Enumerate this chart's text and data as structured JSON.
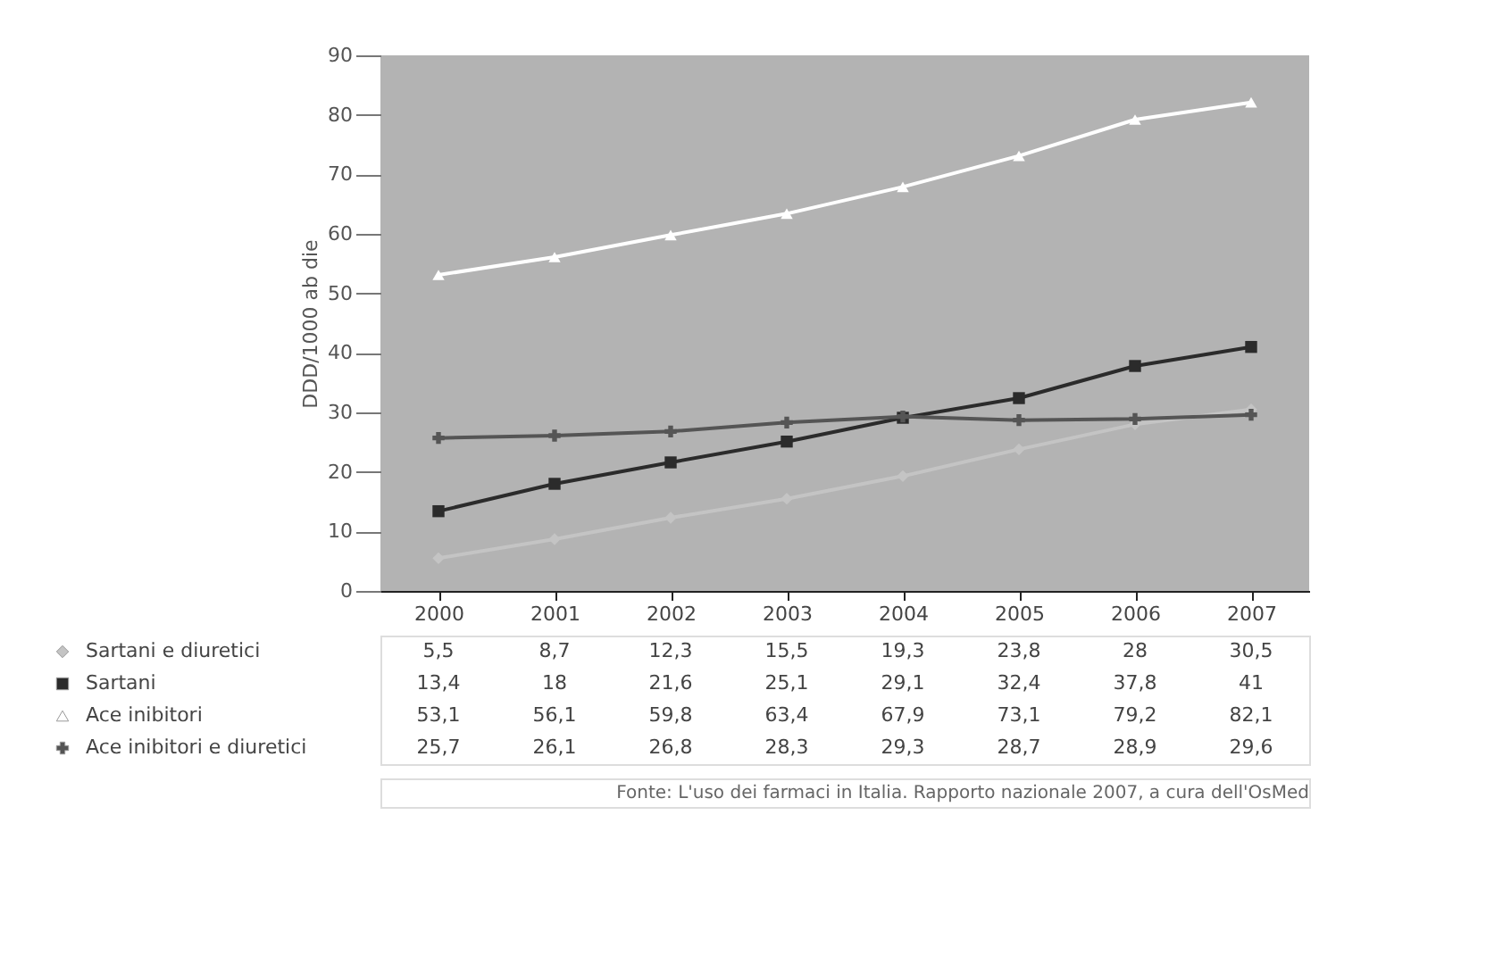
{
  "chart_data": {
    "type": "line",
    "ylabel": "DDD/1000 ab die",
    "categories": [
      "2000",
      "2001",
      "2002",
      "2003",
      "2004",
      "2005",
      "2006",
      "2007"
    ],
    "series": [
      {
        "name": "Sartani e diuretici",
        "color": "#c4c4c4",
        "marker": "diamond",
        "values": [
          5.5,
          8.7,
          12.3,
          15.5,
          19.3,
          23.8,
          28,
          30.5
        ],
        "value_labels": [
          "5,5",
          "8,7",
          "12,3",
          "15,5",
          "19,3",
          "23,8",
          "28",
          "30,5"
        ]
      },
      {
        "name": "Sartani",
        "color": "#2b2b2b",
        "marker": "square",
        "values": [
          13.4,
          18,
          21.6,
          25.1,
          29.1,
          32.4,
          37.8,
          41
        ],
        "value_labels": [
          "13,4",
          "18",
          "21,6",
          "25,1",
          "29,1",
          "32,4",
          "37,8",
          "41"
        ]
      },
      {
        "name": "Ace inibitori",
        "color": "#ffffff",
        "marker": "triangle",
        "values": [
          53.1,
          56.1,
          59.8,
          63.4,
          67.9,
          73.1,
          79.2,
          82.1
        ],
        "value_labels": [
          "53,1",
          "56,1",
          "59,8",
          "63,4",
          "67,9",
          "73,1",
          "79,2",
          "82,1"
        ]
      },
      {
        "name": "Ace inibitori e diuretici",
        "color": "#555555",
        "marker": "cross",
        "values": [
          25.7,
          26.1,
          26.8,
          28.3,
          29.3,
          28.7,
          28.9,
          29.6
        ],
        "value_labels": [
          "25,7",
          "26,1",
          "26,8",
          "28,3",
          "29,3",
          "28,7",
          "28,9",
          "29,6"
        ]
      }
    ],
    "ylim": [
      0,
      90
    ],
    "yticks": [
      0,
      10,
      20,
      30,
      40,
      50,
      60,
      70,
      80,
      90
    ],
    "grid": false,
    "legend": "bottom",
    "line_style": "solid",
    "annotations": [
      "Fonte: L'uso dei farmaci in Italia. Rapporto nazionale 2007, a cura dell'OsMed"
    ]
  }
}
